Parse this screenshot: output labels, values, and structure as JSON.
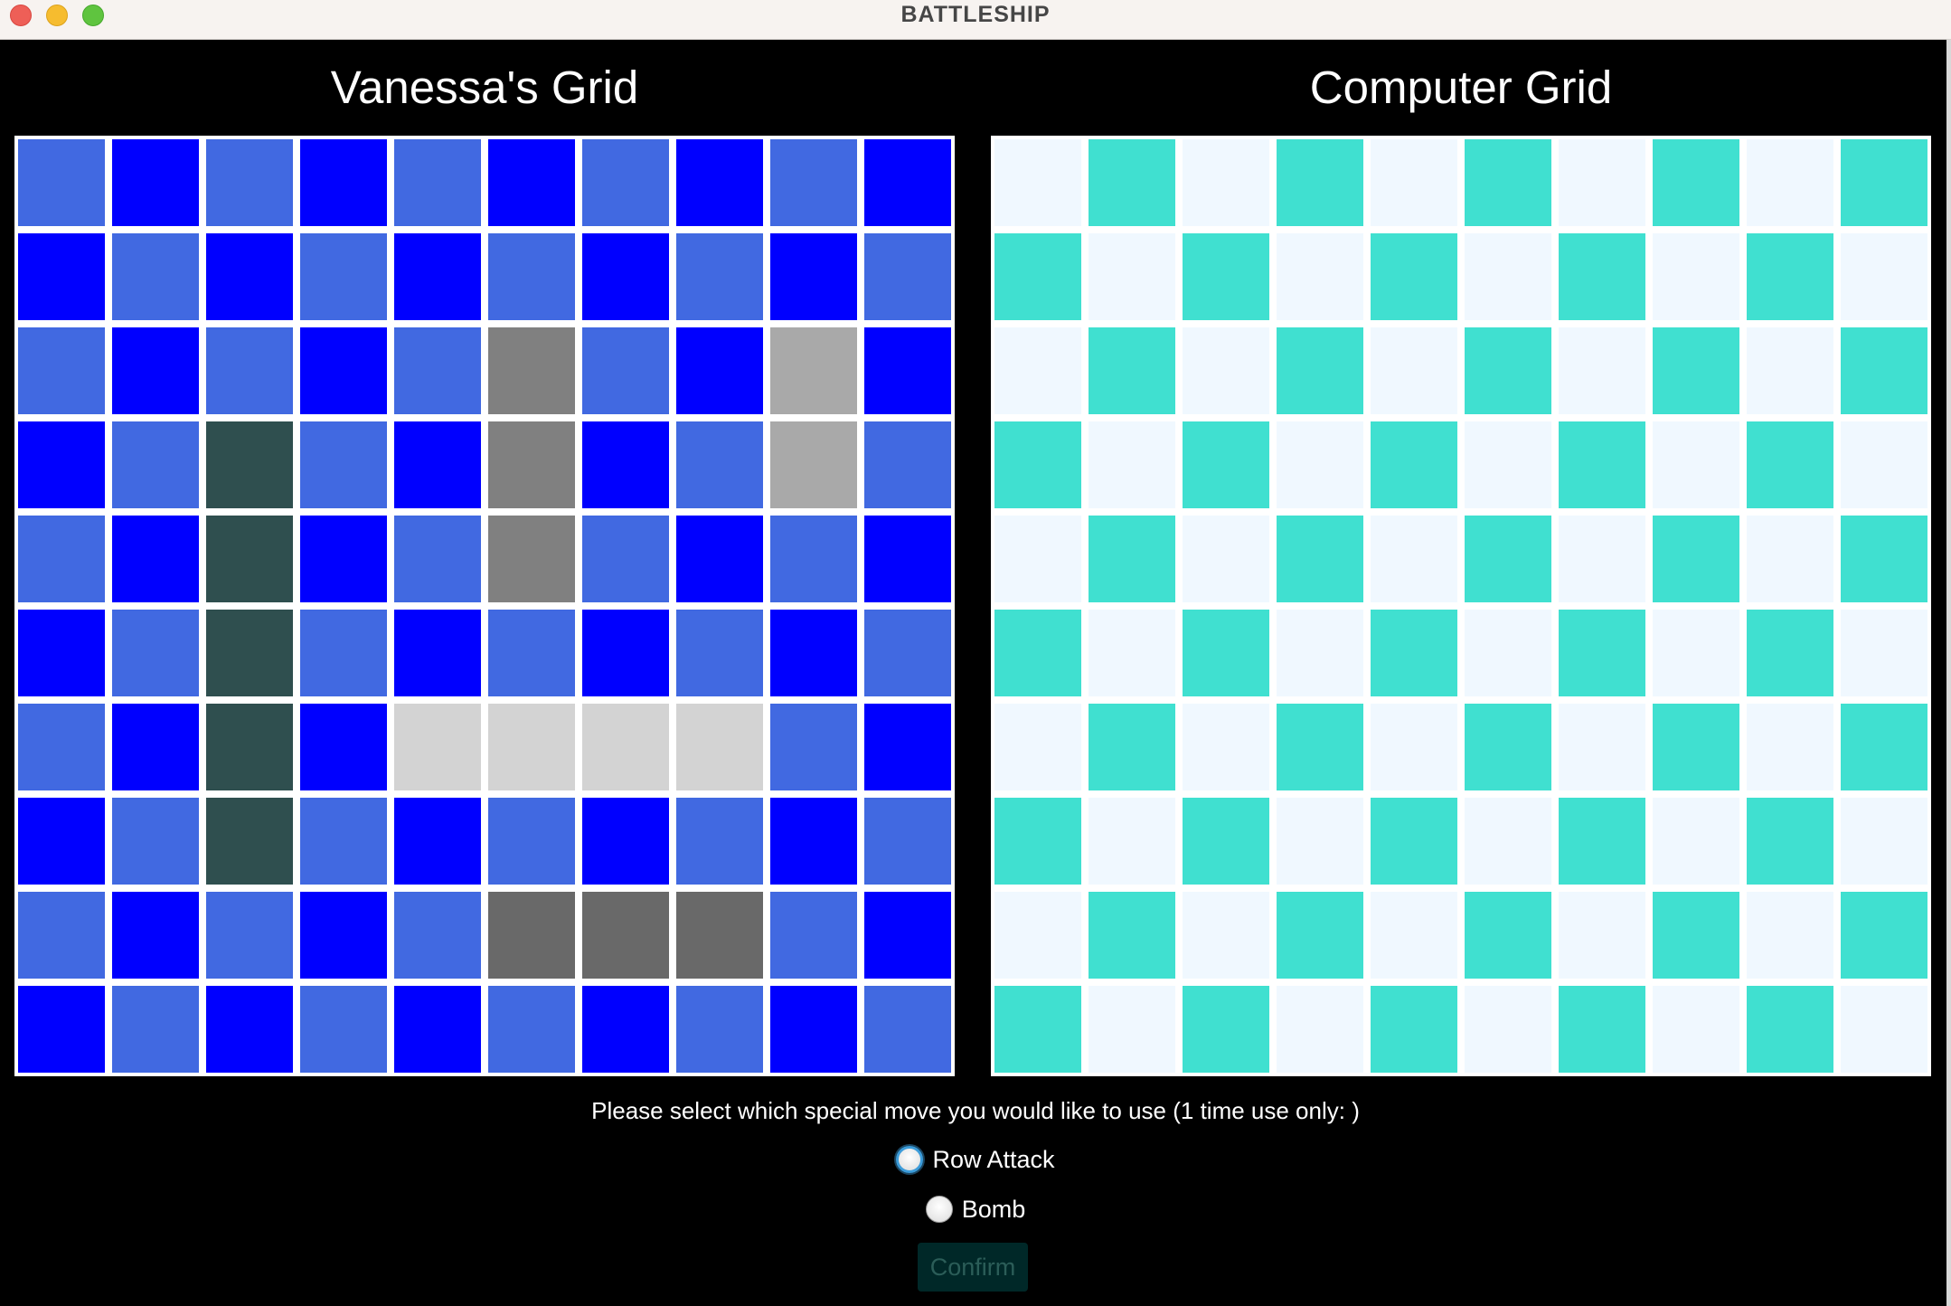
{
  "window": {
    "title": "BATTLESHIP"
  },
  "player_grid": {
    "title": "Vanessa's Grid",
    "legend_colors": {
      "0": "#4169e1",
      "1": "#0000ff",
      "2": "#2f4f4f",
      "3": "#808080",
      "4": "#a9a9a9",
      "5": "#d3d3d3",
      "6": "#696969"
    },
    "cells": [
      [
        0,
        1,
        0,
        1,
        0,
        1,
        0,
        1,
        0,
        1
      ],
      [
        1,
        0,
        1,
        0,
        1,
        0,
        1,
        0,
        1,
        0
      ],
      [
        0,
        1,
        0,
        1,
        0,
        3,
        0,
        1,
        4,
        1
      ],
      [
        1,
        0,
        2,
        0,
        1,
        3,
        1,
        0,
        4,
        0
      ],
      [
        0,
        1,
        2,
        1,
        0,
        3,
        0,
        1,
        0,
        1
      ],
      [
        1,
        0,
        2,
        0,
        1,
        0,
        1,
        0,
        1,
        0
      ],
      [
        0,
        1,
        2,
        1,
        5,
        5,
        5,
        5,
        0,
        1
      ],
      [
        1,
        0,
        2,
        0,
        1,
        0,
        1,
        0,
        1,
        0
      ],
      [
        0,
        1,
        0,
        1,
        0,
        6,
        6,
        6,
        0,
        1
      ],
      [
        1,
        0,
        1,
        0,
        1,
        0,
        1,
        0,
        1,
        0
      ]
    ]
  },
  "computer_grid": {
    "title": "Computer Grid",
    "colors": {
      "light": "#f0f8ff",
      "teal": "#40e0d0"
    },
    "rows": 10,
    "cols": 10
  },
  "special_move": {
    "prompt": "Please select which special move you would like to use (1 time use only: )",
    "options": [
      {
        "label": "Row Attack",
        "focused": true
      },
      {
        "label": "Bomb",
        "focused": false
      }
    ],
    "confirm_label": "Confirm"
  }
}
